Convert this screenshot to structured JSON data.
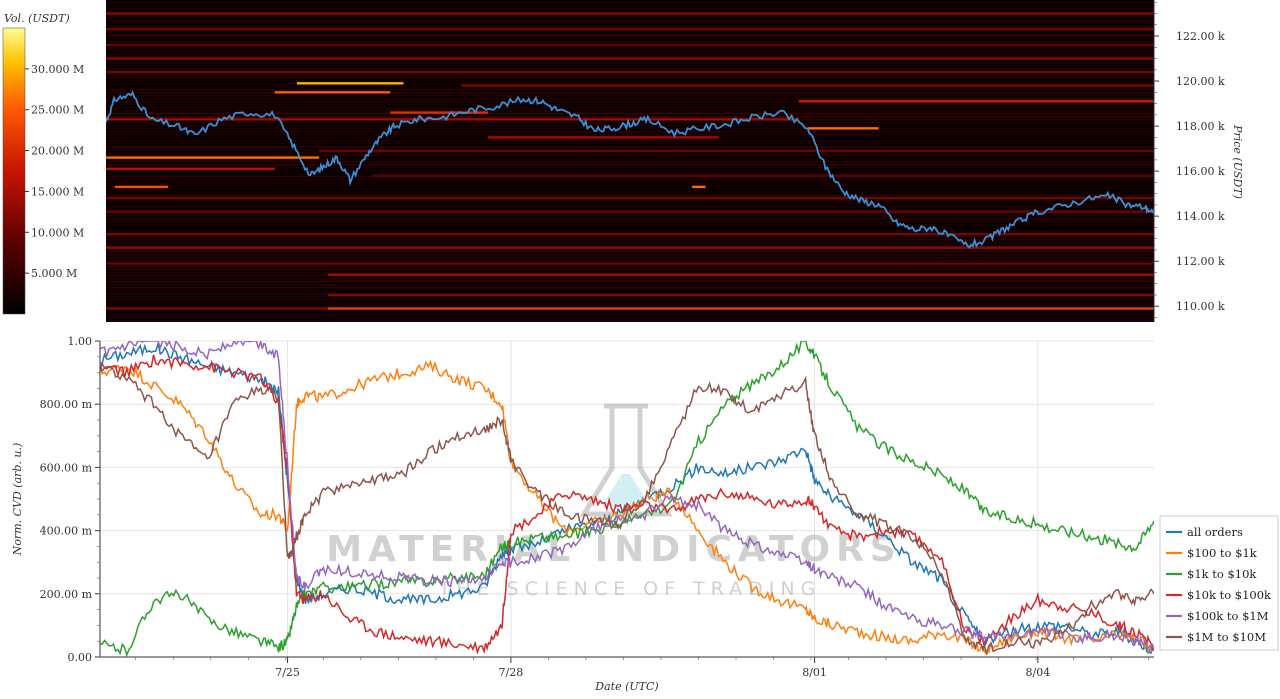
{
  "chart_data": [
    {
      "type": "heatmap",
      "colorbar": {
        "title": "Vol. (USDT)",
        "ticks": [
          "30.000 M",
          "25.000 M",
          "20.000 M",
          "15.000 M",
          "10.000 M",
          "5.000 M"
        ],
        "tick_values": [
          30,
          25,
          20,
          15,
          10,
          5
        ],
        "range": [
          0,
          35
        ]
      },
      "ylabel": "Price (USDT)",
      "yticks": [
        "122.00 k",
        "120.00 k",
        "118.00 k",
        "116.00 k",
        "114.00 k",
        "112.00 k",
        "110.00 k"
      ],
      "ytick_values": [
        122000,
        120000,
        118000,
        116000,
        114000,
        112000,
        110000
      ],
      "ylim": [
        109300,
        123600
      ],
      "xlim": [
        0,
        11.8
      ],
      "price_series": {
        "color": "#3a8fd6",
        "x": [
          0,
          0.1,
          0.3,
          0.5,
          0.8,
          1.0,
          1.3,
          1.6,
          1.9,
          2.1,
          2.3,
          2.45,
          2.6,
          2.75,
          2.95,
          3.1,
          3.25,
          3.5,
          3.8,
          4.1,
          4.4,
          4.7,
          4.9,
          5.1,
          5.3,
          5.5,
          5.7,
          5.9,
          6.1,
          6.4,
          6.7,
          7.0,
          7.3,
          7.6,
          7.9,
          8.1,
          8.3,
          8.5,
          8.7,
          8.9,
          9.1,
          9.3,
          9.5,
          9.7,
          9.9,
          10.1,
          10.3,
          10.5,
          10.8,
          11.1,
          11.3,
          11.5,
          11.7,
          11.8
        ],
        "y": [
          118200,
          119200,
          119400,
          118300,
          118000,
          117600,
          118300,
          118600,
          118500,
          117200,
          115800,
          116200,
          116600,
          115600,
          116800,
          117500,
          118000,
          118300,
          118400,
          118700,
          118900,
          119200,
          119100,
          118700,
          118400,
          117800,
          117900,
          118100,
          118300,
          117700,
          117900,
          118100,
          118400,
          118600,
          117900,
          116200,
          115100,
          114700,
          114500,
          113700,
          113400,
          113500,
          113100,
          112700,
          112900,
          113400,
          113800,
          114200,
          114500,
          114800,
          114900,
          114500,
          114400,
          114100
        ]
      },
      "liquidity_bands": [
        {
          "price": 119900,
          "x0": 2.15,
          "x1": 3.35,
          "vol": 30
        },
        {
          "price": 119500,
          "x0": 1.9,
          "x1": 3.2,
          "vol": 25
        },
        {
          "price": 119100,
          "x0": 7.8,
          "x1": 11.8,
          "vol": 18
        },
        {
          "price": 118600,
          "x0": 3.2,
          "x1": 4.3,
          "vol": 20
        },
        {
          "price": 118300,
          "x0": 0,
          "x1": 7.8,
          "vol": 14
        },
        {
          "price": 117900,
          "x0": 7.9,
          "x1": 8.7,
          "vol": 26
        },
        {
          "price": 117500,
          "x0": 4.3,
          "x1": 6.9,
          "vol": 14
        },
        {
          "price": 116600,
          "x0": 0,
          "x1": 2.4,
          "vol": 26
        },
        {
          "price": 116100,
          "x0": 0,
          "x1": 1.9,
          "vol": 16
        },
        {
          "price": 115300,
          "x0": 0.1,
          "x1": 0.7,
          "vol": 24
        },
        {
          "price": 115300,
          "x0": 6.6,
          "x1": 6.75,
          "vol": 26
        },
        {
          "price": 114800,
          "x0": 0,
          "x1": 11.8,
          "vol": 11
        },
        {
          "price": 114200,
          "x0": 0,
          "x1": 11.8,
          "vol": 10
        },
        {
          "price": 113200,
          "x0": 0,
          "x1": 11.8,
          "vol": 11
        },
        {
          "price": 112600,
          "x0": 0,
          "x1": 11.8,
          "vol": 13
        },
        {
          "price": 111900,
          "x0": 0,
          "x1": 11.8,
          "vol": 10
        },
        {
          "price": 111400,
          "x0": 2.5,
          "x1": 11.8,
          "vol": 14
        },
        {
          "price": 110500,
          "x0": 2.5,
          "x1": 11.8,
          "vol": 12
        },
        {
          "price": 109900,
          "x0": 2.5,
          "x1": 11.8,
          "vol": 22
        },
        {
          "price": 109900,
          "x0": 0,
          "x1": 2.5,
          "vol": 12
        },
        {
          "price": 123000,
          "x0": 0,
          "x1": 11.8,
          "vol": 12
        },
        {
          "price": 122300,
          "x0": 0,
          "x1": 11.8,
          "vol": 11
        },
        {
          "price": 121600,
          "x0": 0,
          "x1": 11.8,
          "vol": 10
        },
        {
          "price": 121000,
          "x0": 0,
          "x1": 11.8,
          "vol": 12
        },
        {
          "price": 120400,
          "x0": 0,
          "x1": 11.8,
          "vol": 11
        },
        {
          "price": 116900,
          "x0": 2.4,
          "x1": 11.8,
          "vol": 10
        },
        {
          "price": 115800,
          "x0": 3.0,
          "x1": 11.8,
          "vol": 9
        },
        {
          "price": 119800,
          "x0": 4.0,
          "x1": 11.8,
          "vol": 11
        }
      ]
    },
    {
      "type": "line",
      "ylabel": "Norm. CVD (arb. u.)",
      "xlabel": "Date (UTC)",
      "yticks": [
        "1.00",
        "800.00 m",
        "600.00 m",
        "400.00 m",
        "200.00 m",
        "0.00"
      ],
      "ytick_values": [
        1.0,
        0.8,
        0.6,
        0.4,
        0.2,
        0.0
      ],
      "ylim": [
        0,
        1.0
      ],
      "xlim": [
        0,
        11.8
      ],
      "xticks": [
        "7/25",
        "7/28",
        "8/01",
        "8/04"
      ],
      "xtick_values": [
        2.1,
        4.6,
        8.0,
        10.5
      ],
      "x": [
        0,
        0.3,
        0.6,
        0.9,
        1.2,
        1.5,
        1.8,
        2.0,
        2.1,
        2.2,
        2.3,
        2.5,
        2.8,
        3.1,
        3.4,
        3.7,
        4.0,
        4.3,
        4.5,
        4.6,
        4.9,
        5.2,
        5.5,
        5.8,
        6.1,
        6.4,
        6.7,
        7.0,
        7.3,
        7.6,
        7.9,
        8.0,
        8.2,
        8.5,
        8.8,
        9.1,
        9.4,
        9.7,
        9.9,
        10.2,
        10.5,
        10.8,
        11.1,
        11.4,
        11.6,
        11.8
      ],
      "series": [
        {
          "name": "all orders",
          "color": "#1f77b4",
          "values": [
            0.94,
            0.96,
            0.98,
            0.95,
            0.92,
            0.9,
            0.88,
            0.84,
            0.55,
            0.25,
            0.18,
            0.2,
            0.22,
            0.2,
            0.18,
            0.18,
            0.2,
            0.22,
            0.33,
            0.34,
            0.36,
            0.4,
            0.42,
            0.45,
            0.5,
            0.54,
            0.6,
            0.58,
            0.6,
            0.62,
            0.66,
            0.56,
            0.5,
            0.45,
            0.38,
            0.3,
            0.25,
            0.12,
            0.05,
            0.08,
            0.1,
            0.1,
            0.07,
            0.08,
            0.05,
            0.02
          ]
        },
        {
          "name": "$100 to $1k",
          "color": "#ff7f0e",
          "values": [
            0.9,
            0.92,
            0.86,
            0.8,
            0.7,
            0.55,
            0.45,
            0.45,
            0.4,
            0.8,
            0.83,
            0.82,
            0.85,
            0.88,
            0.9,
            0.92,
            0.88,
            0.85,
            0.8,
            0.62,
            0.5,
            0.4,
            0.42,
            0.45,
            0.5,
            0.52,
            0.4,
            0.3,
            0.22,
            0.18,
            0.15,
            0.12,
            0.1,
            0.08,
            0.06,
            0.05,
            0.08,
            0.05,
            0.02,
            0.06,
            0.08,
            0.06,
            0.05,
            0.07,
            0.06,
            0.02
          ]
        },
        {
          "name": "$1k to $10k",
          "color": "#2ca02c",
          "values": [
            0.04,
            0.02,
            0.18,
            0.2,
            0.12,
            0.08,
            0.05,
            0.03,
            0.05,
            0.16,
            0.2,
            0.22,
            0.22,
            0.23,
            0.24,
            0.24,
            0.25,
            0.26,
            0.35,
            0.36,
            0.38,
            0.38,
            0.4,
            0.42,
            0.45,
            0.48,
            0.68,
            0.8,
            0.86,
            0.92,
            1.0,
            0.95,
            0.85,
            0.72,
            0.66,
            0.62,
            0.58,
            0.52,
            0.46,
            0.44,
            0.42,
            0.4,
            0.38,
            0.36,
            0.35,
            0.43
          ]
        },
        {
          "name": "$10k to $100k",
          "color": "#d62728",
          "values": [
            0.92,
            0.9,
            0.94,
            0.93,
            0.92,
            0.9,
            0.88,
            0.8,
            0.58,
            0.2,
            0.18,
            0.2,
            0.12,
            0.08,
            0.06,
            0.05,
            0.04,
            0.03,
            0.1,
            0.4,
            0.45,
            0.52,
            0.5,
            0.47,
            0.48,
            0.46,
            0.5,
            0.52,
            0.5,
            0.48,
            0.5,
            0.48,
            0.4,
            0.38,
            0.4,
            0.38,
            0.32,
            0.08,
            0.05,
            0.12,
            0.18,
            0.16,
            0.14,
            0.1,
            0.08,
            0.03
          ]
        },
        {
          "name": "$100k to $1M",
          "color": "#9467bd",
          "values": [
            0.96,
            0.98,
            1.0,
            0.98,
            0.96,
            1.0,
            0.99,
            0.95,
            0.6,
            0.25,
            0.22,
            0.28,
            0.27,
            0.26,
            0.25,
            0.24,
            0.24,
            0.24,
            0.3,
            0.3,
            0.32,
            0.34,
            0.4,
            0.43,
            0.45,
            0.5,
            0.48,
            0.4,
            0.36,
            0.33,
            0.3,
            0.28,
            0.25,
            0.22,
            0.16,
            0.12,
            0.1,
            0.08,
            0.06,
            0.07,
            0.08,
            0.07,
            0.06,
            0.07,
            0.05,
            0.02
          ]
        },
        {
          "name": "$1M to $10M",
          "color": "#8c564b",
          "values": [
            0.92,
            0.88,
            0.8,
            0.7,
            0.62,
            0.8,
            0.85,
            0.82,
            0.3,
            0.38,
            0.45,
            0.52,
            0.55,
            0.56,
            0.58,
            0.65,
            0.7,
            0.72,
            0.75,
            0.62,
            0.52,
            0.45,
            0.43,
            0.42,
            0.5,
            0.68,
            0.86,
            0.84,
            0.78,
            0.83,
            0.87,
            0.7,
            0.55,
            0.45,
            0.42,
            0.38,
            0.28,
            0.05,
            0.02,
            0.05,
            0.04,
            0.08,
            0.16,
            0.2,
            0.18,
            0.2
          ]
        }
      ],
      "legend_position": "right"
    }
  ],
  "watermark": {
    "line1": "MATERIAL INDICATORS",
    "line2": "THE SCIENCE OF TRADING"
  }
}
